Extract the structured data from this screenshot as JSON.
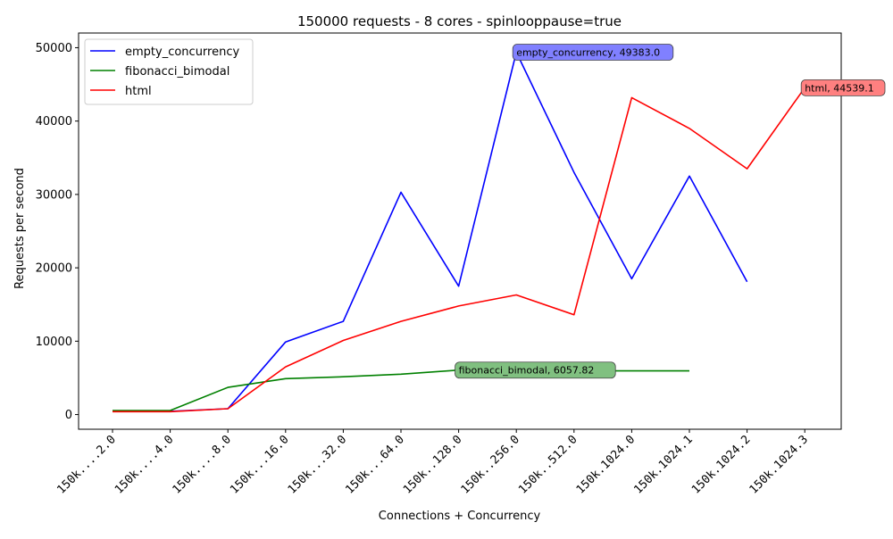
{
  "chart_data": {
    "type": "line",
    "title": "150000 requests - 8 cores - spinlooppause=true",
    "xlabel": "Connections + Concurrency",
    "ylabel": "Requests per second",
    "categories": [
      "150k....2.0",
      "150k....4.0",
      "150k....8.0",
      "150k...16.0",
      "150k...32.0",
      "150k...64.0",
      "150k..128.0",
      "150k..256.0",
      "150k..512.0",
      "150k.1024.0",
      "150k.1024.1",
      "150k.1024.2",
      "150k.1024.3"
    ],
    "ylim": [
      -2000,
      52000
    ],
    "yticks": [
      0,
      10000,
      20000,
      30000,
      40000,
      50000
    ],
    "grid": false,
    "legend_position": "upper-left",
    "series": [
      {
        "name": "empty_concurrency",
        "color": "#0000ff",
        "values": [
          450,
          450,
          800,
          9900,
          12700,
          30300,
          17500,
          49383.0,
          33000,
          18500,
          32500,
          18100,
          null
        ]
      },
      {
        "name": "fibonacci_bimodal",
        "color": "#008000",
        "values": [
          550,
          550,
          3700,
          4900,
          5150,
          5500,
          6057.82,
          5950,
          5950,
          5950,
          5950,
          null,
          null
        ]
      },
      {
        "name": "html",
        "color": "#ff0000",
        "values": [
          400,
          400,
          800,
          6500,
          10100,
          12700,
          14800,
          16300,
          13600,
          43200,
          39000,
          33500,
          44539.1
        ]
      }
    ],
    "annotations": [
      {
        "series": 0,
        "index": 7,
        "text": "empty_concurrency, 49383.0",
        "bg": "#8080ff"
      },
      {
        "series": 1,
        "index": 6,
        "text": "fibonacci_bimodal, 6057.82",
        "bg": "#80c080"
      },
      {
        "series": 2,
        "index": 12,
        "text": "html, 44539.1",
        "bg": "#ff8080"
      }
    ]
  }
}
